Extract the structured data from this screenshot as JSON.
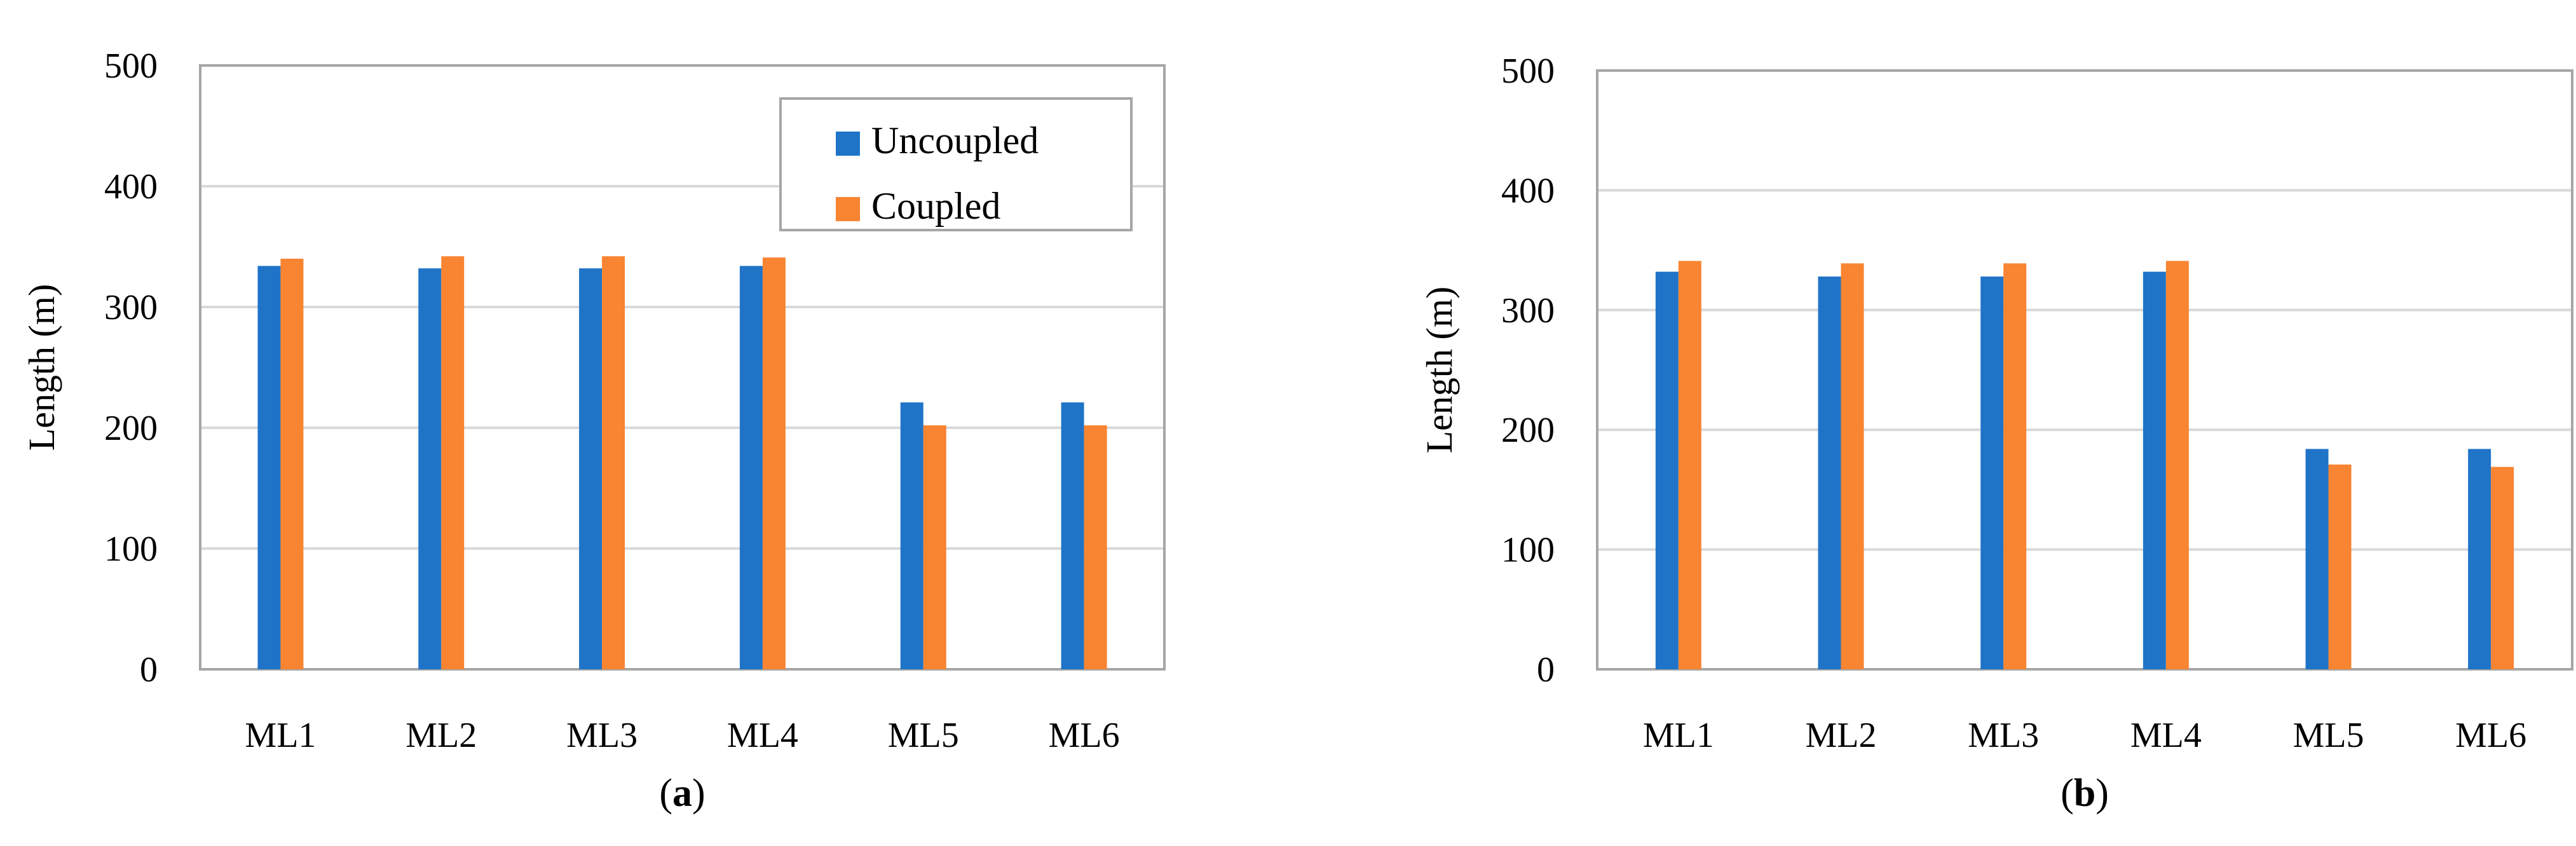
{
  "chart_data": [
    {
      "type": "bar",
      "panel": "a",
      "caption_open": "(",
      "caption_letter": "a",
      "caption_close": ")",
      "ylabel": "Length (m)",
      "ylim": [
        0,
        500
      ],
      "yticks": [
        0,
        100,
        200,
        300,
        400,
        500
      ],
      "grid": true,
      "legend_position": "top-right",
      "categories": [
        "ML1",
        "ML2",
        "ML3",
        "ML4",
        "ML5",
        "ML6"
      ],
      "series": [
        {
          "name": "Uncoupled",
          "color": "#1f74c8",
          "values": [
            334,
            332,
            332,
            334,
            221,
            221
          ]
        },
        {
          "name": "Coupled",
          "color": "#f98431",
          "values": [
            340,
            342,
            342,
            341,
            202,
            202
          ]
        }
      ]
    },
    {
      "type": "bar",
      "panel": "b",
      "caption_open": "(",
      "caption_letter": "b",
      "caption_close": ")",
      "ylabel": "Length (m)",
      "ylim": [
        0,
        500
      ],
      "yticks": [
        0,
        100,
        200,
        300,
        400,
        500
      ],
      "grid": true,
      "legend_position": "none",
      "categories": [
        "ML1",
        "ML2",
        "ML3",
        "ML4",
        "ML5",
        "ML6"
      ],
      "series": [
        {
          "name": "Uncoupled",
          "color": "#1f74c8",
          "values": [
            332,
            328,
            328,
            332,
            184,
            184
          ]
        },
        {
          "name": "Coupled",
          "color": "#f98431",
          "values": [
            341,
            339,
            339,
            341,
            171,
            169
          ]
        }
      ]
    }
  ],
  "colors": {
    "grid": "#d9d9d9",
    "frame": "#a6a6a6"
  }
}
